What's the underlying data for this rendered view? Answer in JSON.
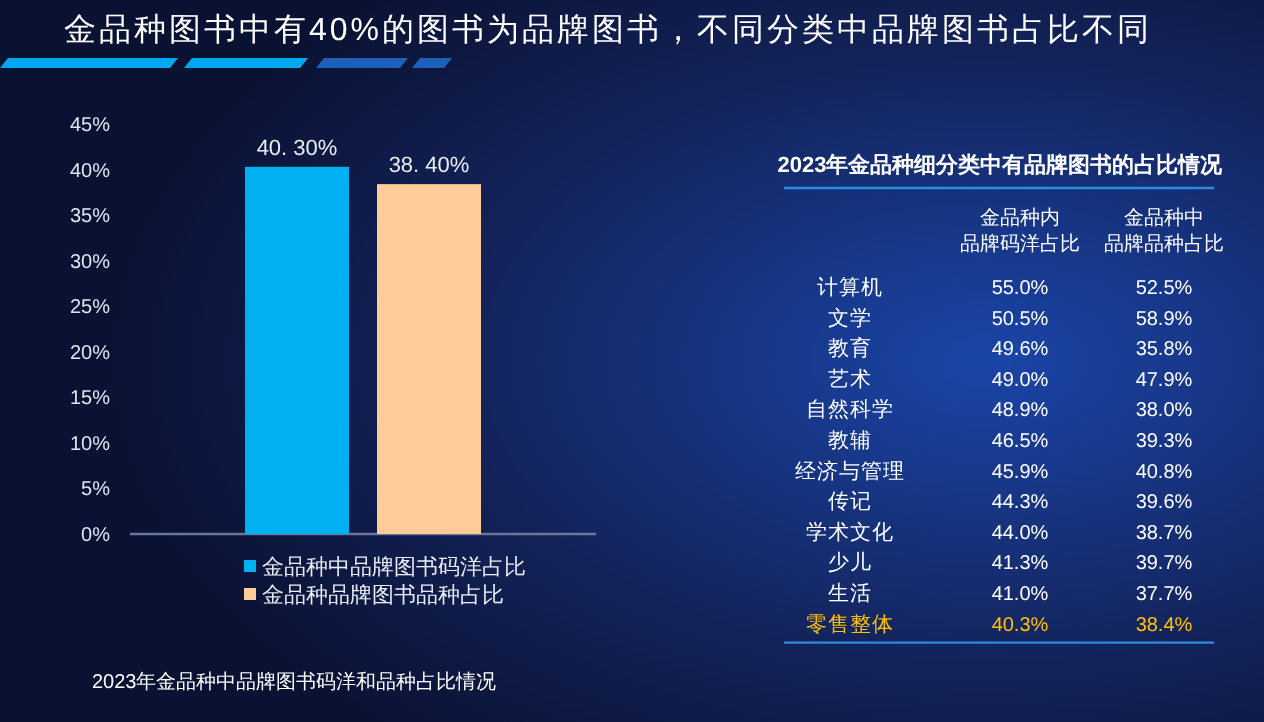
{
  "chart_data": [
    {
      "type": "bar",
      "title": "金品种图书中有40%的图书为品牌图书，不同分类中品牌图书占比不同",
      "categories": [
        null
      ],
      "series": [
        {
          "name": "金品种中品牌图书码洋占比",
          "color": "#00b0f0",
          "values": [
            40.3
          ],
          "value_labels": [
            "40. 30%"
          ]
        },
        {
          "name": "金品种品牌图书品种占比",
          "color": "#ffcc99",
          "values": [
            38.4
          ],
          "value_labels": [
            "38. 40%"
          ]
        }
      ],
      "ylim": [
        0,
        45
      ],
      "yticks": [
        {
          "value": 0,
          "label": "0%"
        },
        {
          "value": 5,
          "label": "5%"
        },
        {
          "value": 10,
          "label": "10%"
        },
        {
          "value": 15,
          "label": "15%"
        },
        {
          "value": 20,
          "label": "20%"
        },
        {
          "value": 25,
          "label": "25%"
        },
        {
          "value": 30,
          "label": "30%"
        },
        {
          "value": 35,
          "label": "35%"
        },
        {
          "value": 40,
          "label": "40%"
        },
        {
          "value": 45,
          "label": "45%"
        }
      ],
      "legend": "bottom",
      "grid": false,
      "annotations": [
        "2023年金品种中品牌图书码洋和品种占比情况"
      ]
    },
    {
      "type": "other",
      "title": "2023年金品种细分类中有品牌图书的占比情况",
      "categories": [
        "计算机",
        "文学",
        "教育",
        "艺术",
        "自然科学",
        "教辅",
        "经济与管理",
        "传记",
        "学术文化",
        "少儿",
        "生活",
        "零售整体"
      ],
      "series": [
        {
          "name": "金品种内品牌码洋占比",
          "values": [
            55.0,
            50.5,
            49.6,
            49.0,
            48.9,
            46.5,
            45.9,
            44.3,
            44.0,
            41.3,
            41.0,
            40.3
          ],
          "value_labels": [
            "55.0%",
            "50.5%",
            "49.6%",
            "49.0%",
            "48.9%",
            "46.5%",
            "45.9%",
            "44.3%",
            "44.0%",
            "41.3%",
            "41.0%",
            "40.3%"
          ],
          "colors": [
            "#ffffff",
            "#ffffff",
            "#ffffff",
            "#ffffff",
            "#ffffff",
            "#ffffff",
            "#ffffff",
            "#ffffff",
            "#ffffff",
            "#ffffff",
            "#ffffff",
            "#ffc000"
          ]
        },
        {
          "name": "金品种中品牌品种占比",
          "values": [
            52.5,
            58.9,
            35.8,
            47.9,
            38.0,
            39.3,
            40.8,
            39.6,
            38.7,
            39.7,
            37.7,
            38.4
          ],
          "value_labels": [
            "52.5%",
            "58.9%",
            "35.8%",
            "47.9%",
            "38.0%",
            "39.3%",
            "40.8%",
            "39.6%",
            "38.7%",
            "39.7%",
            "37.7%",
            "38.4%"
          ],
          "colors": [
            "#ffffff",
            "#ffffff",
            "#ffffff",
            "#ffffff",
            "#ffffff",
            "#ffffff",
            "#ffffff",
            "#ffffff",
            "#ffffff",
            "#ffffff",
            "#ffffff",
            "#ffc000"
          ]
        }
      ],
      "data_labels": false
    }
  ]
}
